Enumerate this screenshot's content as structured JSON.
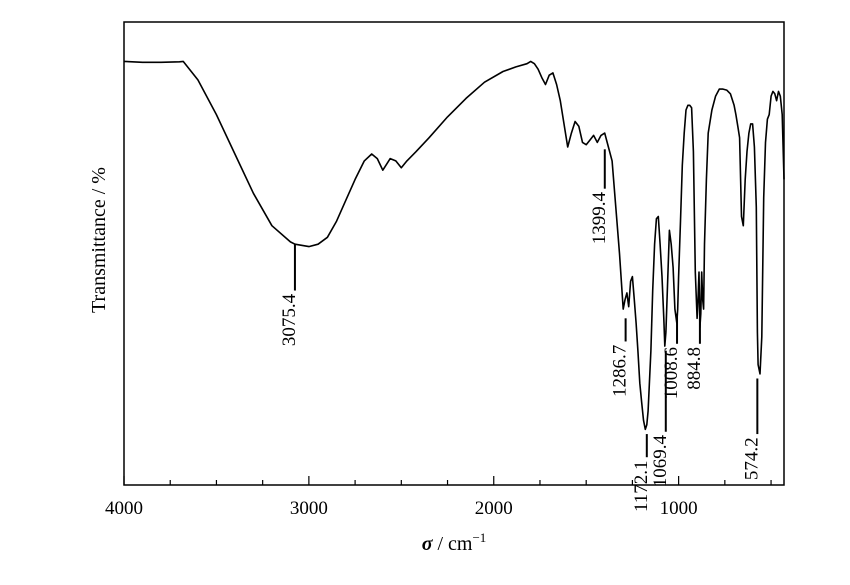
{
  "chart_data": {
    "type": "line",
    "title": "",
    "xlabel_symbol": "σ",
    "xlabel_unit": " / cm",
    "xlabel_sup": "−1",
    "ylabel": "Transmittance / %",
    "xlim": [
      4000,
      430
    ],
    "x_reversed": true,
    "x_ticks": [
      4000,
      3000,
      2000,
      1000
    ],
    "x_tick_labels": [
      "4000",
      "3000",
      "2000",
      "1000"
    ],
    "y_ticks_shown": false,
    "ylim": [
      0,
      100
    ],
    "grid": false,
    "series": [
      {
        "color": "#000000",
        "x": [
          4000,
          3900,
          3800,
          3700,
          3680,
          3600,
          3500,
          3400,
          3300,
          3200,
          3100,
          3075,
          3000,
          2950,
          2900,
          2850,
          2800,
          2750,
          2700,
          2660,
          2630,
          2600,
          2560,
          2530,
          2500,
          2470,
          2420,
          2350,
          2250,
          2150,
          2050,
          1950,
          1880,
          1820,
          1800,
          1780,
          1760,
          1740,
          1720,
          1700,
          1680,
          1660,
          1640,
          1620,
          1600,
          1580,
          1560,
          1540,
          1520,
          1500,
          1480,
          1460,
          1440,
          1420,
          1400,
          1380,
          1360,
          1340,
          1320,
          1300,
          1290,
          1280,
          1270,
          1260,
          1250,
          1240,
          1230,
          1220,
          1210,
          1200,
          1190,
          1180,
          1172,
          1165,
          1150,
          1140,
          1130,
          1120,
          1110,
          1100,
          1090,
          1080,
          1075,
          1069,
          1060,
          1050,
          1040,
          1030,
          1020,
          1010,
          1005,
          1000,
          990,
          980,
          970,
          960,
          950,
          940,
          930,
          920,
          910,
          900,
          895,
          890,
          885,
          880,
          875,
          870,
          865,
          860,
          850,
          840,
          820,
          800,
          780,
          760,
          740,
          720,
          700,
          690,
          680,
          670,
          660,
          650,
          640,
          630,
          620,
          610,
          600,
          590,
          580,
          574,
          570,
          560,
          550,
          540,
          530,
          520,
          510,
          500,
          490,
          480,
          470,
          460,
          450,
          440,
          430
        ],
        "y": [
          91.5,
          91.3,
          91.3,
          91.4,
          91.5,
          87.5,
          80,
          71.5,
          63,
          56,
          52.5,
          52,
          51.5,
          52,
          53.5,
          57,
          61.5,
          66,
          70,
          71.5,
          70.5,
          68,
          70.5,
          70,
          68.5,
          70,
          72,
          75,
          79.5,
          83.5,
          87,
          89.3,
          90.3,
          91,
          91.5,
          91,
          89.8,
          88,
          86.5,
          88.5,
          89,
          86.5,
          83,
          78,
          73,
          76,
          78.5,
          77.5,
          74,
          73.5,
          74.5,
          75.5,
          74,
          75.5,
          76,
          73,
          70,
          60,
          50,
          38,
          40,
          41.5,
          38.5,
          44,
          45,
          40,
          35,
          29,
          22,
          18,
          14,
          12,
          13,
          16,
          29,
          42,
          52,
          57.5,
          58,
          52,
          45,
          36,
          30,
          33,
          43,
          55,
          52,
          47,
          38,
          35,
          38,
          45,
          57,
          69,
          76,
          81,
          82,
          82,
          81.5,
          72,
          46,
          36,
          40,
          46,
          34,
          37,
          46,
          40,
          38,
          52,
          66,
          76,
          81,
          84,
          85.5,
          85.5,
          85.3,
          84.5,
          82,
          80,
          77.5,
          75,
          58,
          56,
          66,
          72,
          76,
          78,
          78,
          73,
          60,
          33,
          26,
          24,
          32,
          62,
          74,
          79,
          80,
          84,
          85,
          84.5,
          83,
          85,
          84,
          80,
          66
        ]
      }
    ],
    "annotations": [
      {
        "x": 3075.4,
        "label": "3075.4",
        "line_y": [
          52,
          42
        ],
        "label_anchor_y": 40
      },
      {
        "x": 1399.4,
        "label": "1399.4",
        "line_y": [
          72.5,
          64
        ],
        "label_anchor_y": 62
      },
      {
        "x": 1286.7,
        "label": "1286.7",
        "line_y": [
          36,
          31
        ],
        "label_anchor_y": 29
      },
      {
        "x": 1172.1,
        "label": "1172.1",
        "line_y": [
          11,
          6
        ],
        "label_anchor_y": 4
      },
      {
        "x": 1069.4,
        "label": "1069.4",
        "line_y": [
          29,
          11.5
        ],
        "label_anchor_y": 9.5
      },
      {
        "x": 1008.6,
        "label": "1008.6",
        "line_y": [
          37,
          30.5
        ],
        "label_anchor_y": 28.5
      },
      {
        "x": 884.8,
        "label": "884.8",
        "line_y": [
          36,
          30.5
        ],
        "label_anchor_y": 28.5
      },
      {
        "x": 574.2,
        "label": "574.2",
        "line_y": [
          23,
          11
        ],
        "label_anchor_y": 9
      }
    ]
  }
}
